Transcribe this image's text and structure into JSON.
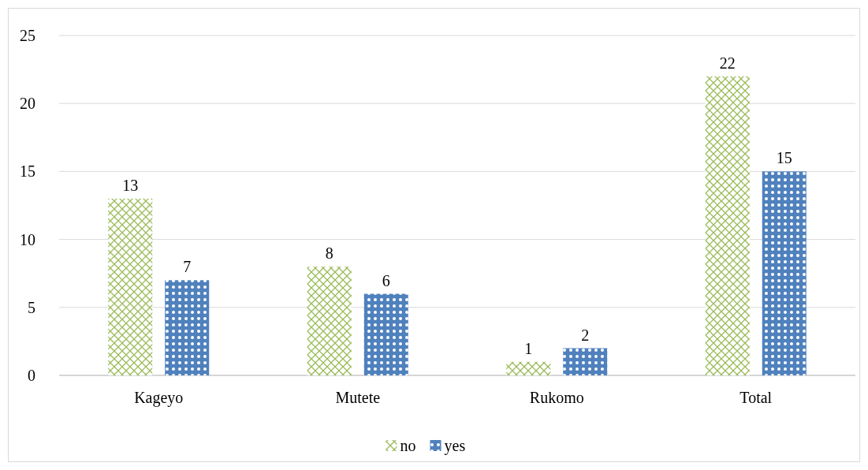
{
  "chart_data": {
    "type": "bar",
    "categories": [
      "Kageyo",
      "Mutete",
      "Rukomo",
      "Total"
    ],
    "series": [
      {
        "name": "no",
        "color": "#9bbb59",
        "values": [
          13,
          8,
          1,
          22
        ]
      },
      {
        "name": "yes",
        "color": "#4f81bd",
        "values": [
          7,
          6,
          2,
          15
        ]
      }
    ],
    "ylim": [
      0,
      25
    ],
    "yticks": [
      0,
      5,
      10,
      15,
      20,
      25
    ],
    "grid": "y",
    "legend": "bottom",
    "data_labels": true
  }
}
